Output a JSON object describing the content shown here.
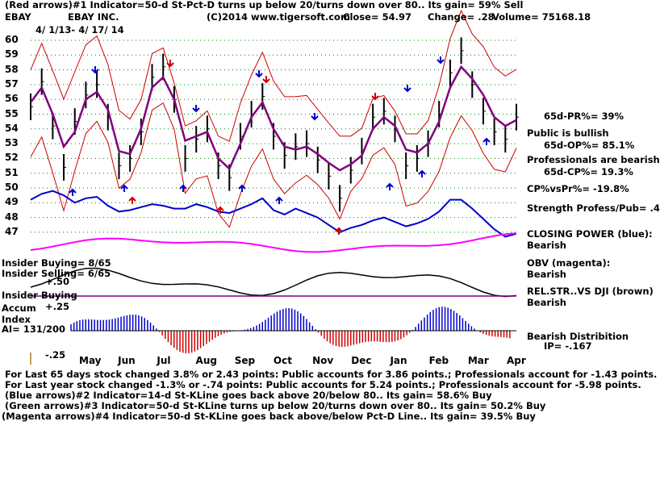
{
  "header": {
    "line1": "(Red arrows)#1 Indicator=50-d St-Pct-D turns up below 20/turns down over 80.. Its gain= 59% Sell",
    "ticker": "EBAY",
    "company": "EBAY INC.",
    "copyright": "(C)2014 www.tigersoft.com",
    "close": "Close=  54.97",
    "change": "Change= .28",
    "volume": "Volume=  75168.18",
    "date_range": "4/ 1/13- 4/ 17/ 14"
  },
  "right_labels": {
    "pr": "65d-PR%= 39%",
    "public": "Public is bullish",
    "op": "65d-OP%= 85.1%",
    "professionals": "Professionals are bearish",
    "cp": "65d-CP%= 19.3%",
    "cpvspr": "CP%vsPr%= -19.8%",
    "strength": "Strength Profess/Pub= .4",
    "closing_power": "CLOSING POWER (blue):",
    "closing_power_val": "Bearish",
    "obv": "OBV (magenta):",
    "obv_val": "Bearish",
    "relstr": "REL.STR..VS DJI (brown)",
    "relstr_val": "Bearish",
    "distribution": "Bearish Distribition",
    "ip": "IP= -.167"
  },
  "left_labels": {
    "insider_buying": "Insider Buying= 8/65",
    "insider_selling": "Insider Selling= 6/65",
    "plus50": "+.50",
    "insider_buying2": "Insider Buying",
    "plus25": "+.25",
    "accum": "Accum",
    "index": "Index",
    "ai": "AI= 131/200",
    "minus25": "-.25"
  },
  "footer": {
    "line1": "For Last 65 days stock changed  3.8% or  2.43 points:  Public accounts for  3.86 points.;  Professionals account for -1.43 points.",
    "line2": "For Last year stock changed -1.3% or -.74 points:  Public accounts for  5.24 points.;  Professionals account for -5.98 points.",
    "line3": "(Blue arrows)#2 Indicator=14-d St-KLine goes back above 20/below 80.. Its gain= 58.6% Buy",
    "line4": "(Green arrows)#3 Indicator=50-d St-KLine turns up below 20/turns down over 80.. Its gain= 50.2% Buy",
    "line5": "(Magenta arrows)#4 Indicator=50-d St-KLine goes back above/below Pct-D Line.. Its gain= 39.5% Buy"
  },
  "colors": {
    "price": "#000000",
    "bands": "#cc0000",
    "ma": "#800080",
    "closing_power": "#0000cc",
    "obv": "#ff00ff",
    "grid": "#008000",
    "accum_pos": "#0000cc",
    "accum_neg": "#cc0000"
  },
  "chart_data": {
    "type": "line",
    "x_tick_labels": [
      "May",
      "Jun",
      "Jul",
      "Aug",
      "Sep",
      "Oct",
      "Nov",
      "Dec",
      "Jan",
      "Feb",
      "Mar",
      "Apr"
    ],
    "y_tick_labels": [
      "60",
      "59",
      "58",
      "57",
      "56",
      "55",
      "54",
      "53",
      "52",
      "51",
      "50",
      "49",
      "48",
      "47"
    ],
    "ylim": [
      46.5,
      60.5
    ],
    "series": [
      {
        "values": [
          55.5,
          57.2,
          54.2,
          51.4,
          54.5,
          56.3,
          57.0,
          54.8,
          51.5,
          52.0,
          53.8,
          57.5,
          58.2,
          56.0,
          52.0,
          53.3,
          54.0,
          51.5,
          50.7,
          53.5,
          55.0,
          56.2,
          53.5,
          52.2,
          52.8,
          53.0,
          51.9,
          50.8,
          49.3,
          51.2,
          52.5,
          54.8,
          55.2,
          54.0,
          51.5,
          52.0,
          53.0,
          55.0,
          57.8,
          59.3,
          57.0,
          55.2,
          53.8,
          53.3,
          54.8
        ]
      },
      {
        "values": [
          55.8,
          56.8,
          55.0,
          52.8,
          53.8,
          56.0,
          56.5,
          55.3,
          52.5,
          52.3,
          54.0,
          56.8,
          57.5,
          56.0,
          53.2,
          53.5,
          53.8,
          52.0,
          51.3,
          53.0,
          54.8,
          55.8,
          54.0,
          52.8,
          52.6,
          52.8,
          52.3,
          51.7,
          51.2,
          51.6,
          52.2,
          54.0,
          54.8,
          54.2,
          52.6,
          52.4,
          53.0,
          54.5,
          56.8,
          58.2,
          57.4,
          56.3,
          54.8,
          54.2,
          54.6
        ]
      },
      {
        "values": [
          49.2,
          49.6,
          49.8,
          49.5,
          49.0,
          49.3,
          49.4,
          48.8,
          48.4,
          48.5,
          48.7,
          48.9,
          48.8,
          48.6,
          48.6,
          48.9,
          48.7,
          48.4,
          48.3,
          48.6,
          48.9,
          49.3,
          48.5,
          48.2,
          48.6,
          48.3,
          48.0,
          47.5,
          47.0,
          47.3,
          47.5,
          47.8,
          48.0,
          47.7,
          47.4,
          47.6,
          47.9,
          48.4,
          49.2,
          49.2,
          48.6,
          47.9,
          47.2,
          46.7,
          46.9
        ]
      }
    ],
    "annotations": [
      "(Red arrows)",
      "(Blue arrows)",
      "(Green arrows)",
      "(Magenta arrows)"
    ]
  }
}
